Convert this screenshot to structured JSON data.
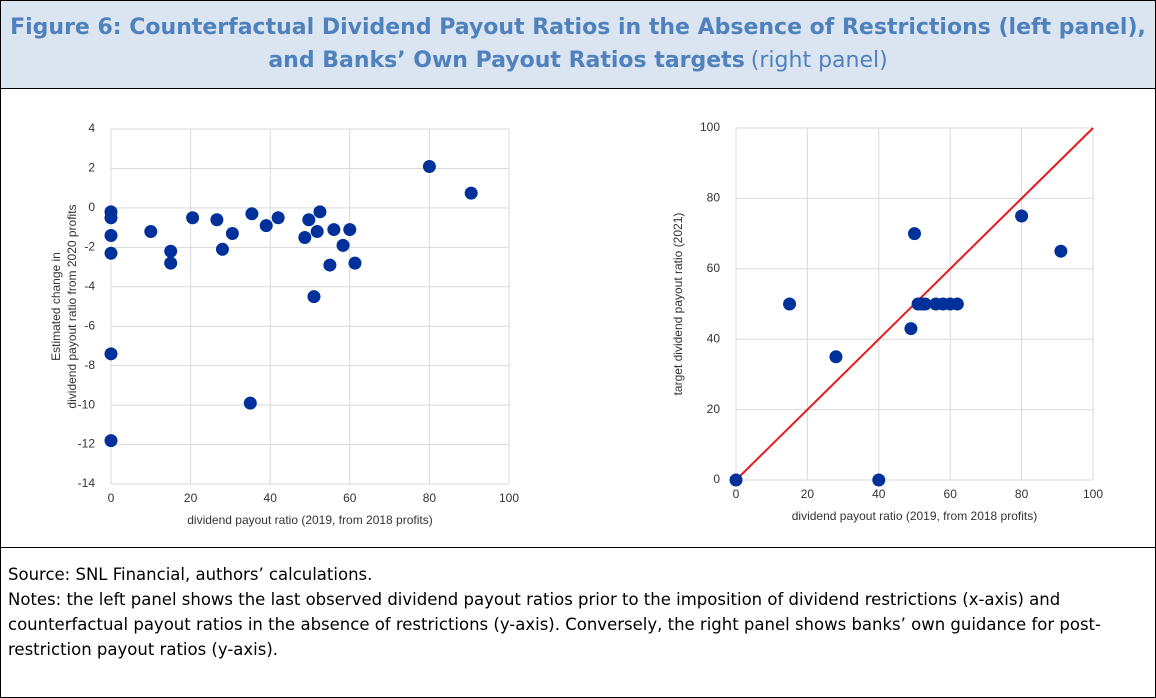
{
  "figure": {
    "title": "Figure 6: Counterfactual Dividend Payout Ratios in the Absence of Restrictions (left panel), and Banks’ Own Payout Ratios targets",
    "title_suffix": "(right panel)"
  },
  "chart_data": [
    {
      "type": "scatter",
      "color": "#00309a",
      "grid": true,
      "xlabel": "dividend payout ratio (2019, from 2018 profits)",
      "ylabel": [
        "Estimated change in",
        "dividend payout ratio from 2020 profits"
      ],
      "xlim": [
        0,
        100
      ],
      "xticks": [
        0,
        20,
        40,
        60,
        80,
        100
      ],
      "ylim": [
        -14,
        4
      ],
      "yticks": [
        -14,
        -12,
        -10,
        -8,
        -6,
        -4,
        -2,
        0,
        2,
        4
      ],
      "x": [
        0,
        0,
        0,
        0,
        0,
        0,
        10,
        15,
        15,
        20.5,
        26.6,
        28,
        30.5,
        35.4,
        35,
        39,
        42,
        48.7,
        49.7,
        51,
        51.8,
        52.5,
        56,
        55,
        58.3,
        60,
        61.3,
        80,
        90.5
      ],
      "values": [
        -0.2,
        -0.5,
        -1.4,
        -2.3,
        -7.4,
        -11.8,
        -1.2,
        -2.2,
        -2.8,
        -0.5,
        -0.6,
        -2.1,
        -1.3,
        -0.3,
        -9.9,
        -0.9,
        -0.5,
        -1.5,
        -0.6,
        -4.5,
        -1.2,
        -0.2,
        -1.1,
        -2.9,
        -1.9,
        -1.1,
        -2.8,
        2.1,
        0.75
      ]
    },
    {
      "type": "scatter",
      "color": "#00309a",
      "grid": true,
      "xlabel": "dividend payout ratio (2019, from 2018 profits)",
      "ylabel": [
        "target dividend payout ratio (2021)"
      ],
      "xlim": [
        0,
        100
      ],
      "xticks": [
        0,
        20,
        40,
        60,
        80,
        100
      ],
      "ylim": [
        0,
        100
      ],
      "yticks": [
        0,
        20,
        40,
        60,
        80,
        100
      ],
      "x": [
        0,
        15,
        28,
        40,
        49,
        50,
        51,
        52,
        53,
        56,
        58,
        60,
        62,
        80,
        91
      ],
      "values": [
        0,
        50,
        35,
        0,
        43,
        70,
        50,
        50,
        50,
        50,
        50,
        50,
        50,
        75,
        65
      ],
      "reference_line": {
        "x": [
          0,
          100
        ],
        "y": [
          0,
          100
        ],
        "color": "#e8191d"
      }
    }
  ],
  "source": "Source: SNL Financial, authors’ calculations.",
  "notes": "Notes: the left panel shows the last observed dividend payout ratios prior to the imposition of dividend restrictions (x-axis) and counterfactual payout ratios in the absence of restrictions (y-axis). Conversely, the right panel shows banks’ own guidance for post-restriction payout ratios (y-axis)."
}
